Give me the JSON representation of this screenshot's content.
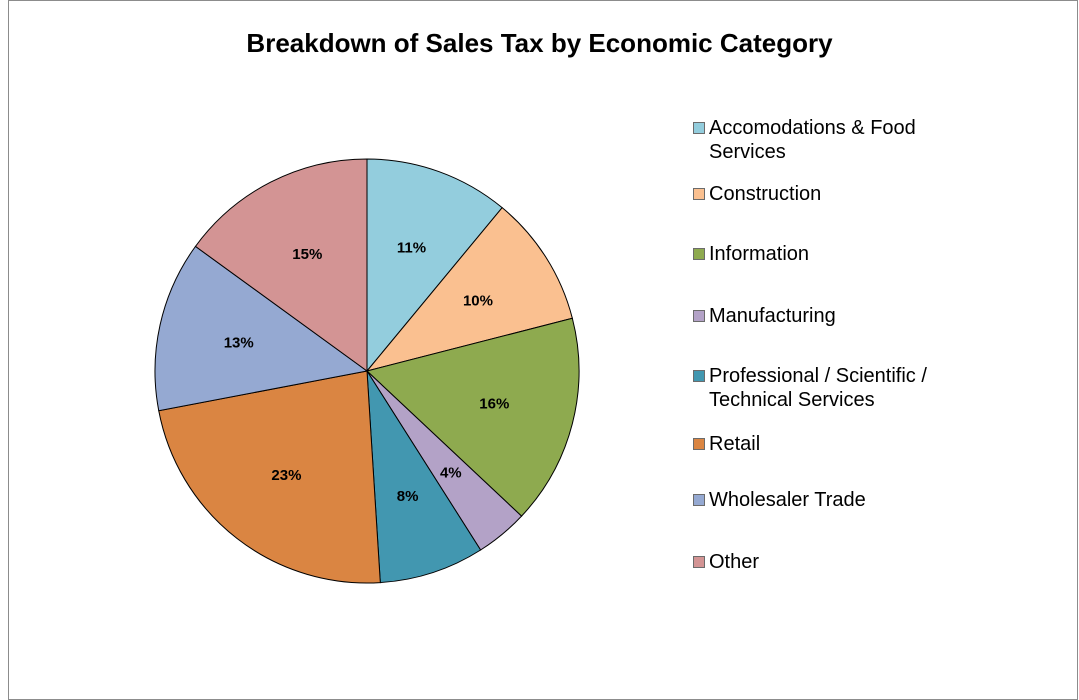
{
  "chart_data": {
    "type": "pie",
    "title": "Breakdown of Sales Tax by Economic Category",
    "categories": [
      "Accomodations & Food Services",
      "Construction",
      "Information",
      "Manufacturing",
      "Professional / Scientific / Technical Services",
      "Retail",
      "Wholesaler Trade",
      "Other"
    ],
    "values": [
      11,
      10,
      16,
      4,
      8,
      23,
      13,
      15
    ],
    "labels": [
      "11%",
      "10%",
      "16%",
      "4%",
      "8%",
      "23%",
      "13%",
      "15%"
    ],
    "colors": [
      "#93CDDD",
      "#FAC090",
      "#8EAA4F",
      "#B3A2C7",
      "#4297B0",
      "#DA8542",
      "#95A9D2",
      "#D39494"
    ],
    "legend_position": "right"
  }
}
